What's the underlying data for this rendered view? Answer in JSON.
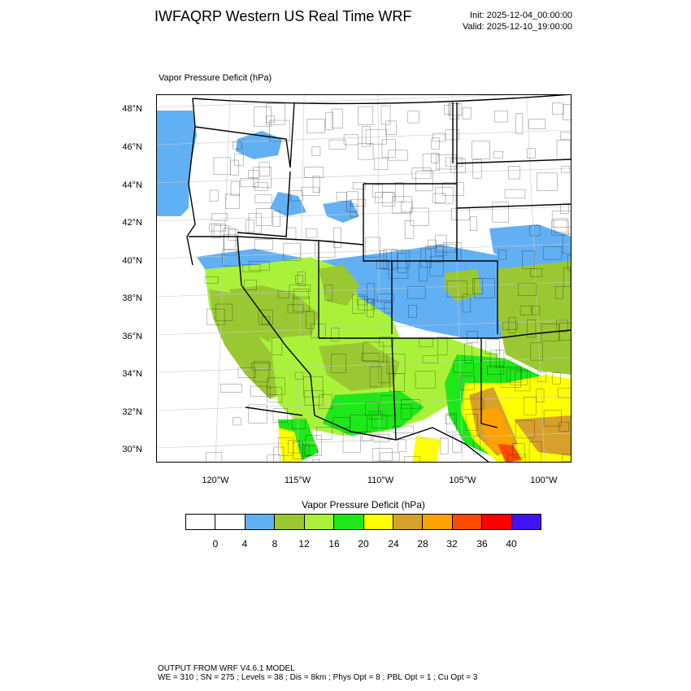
{
  "header": {
    "title": "IWFAQRP Western US Real Time WRF",
    "init": "Init: 2025-12-04_00:00:00",
    "valid": "Valid: 2025-12-10_19:00:00"
  },
  "map": {
    "field_label": "Vapor Pressure Deficit   (hPa)",
    "lat_labels": [
      "48°N",
      "46°N",
      "44°N",
      "42°N",
      "40°N",
      "38°N",
      "36°N",
      "34°N",
      "32°N",
      "30°N"
    ],
    "lon_labels": [
      "120°W",
      "115°W",
      "110°W",
      "105°W",
      "100°W"
    ],
    "colors": {
      "water": "#62b0f4",
      "blue": "#62b0f4",
      "olive": "#9ac832",
      "lime": "#aaf23a",
      "green": "#1fe81a",
      "yellow": "#ffff00",
      "gold": "#d6a02c",
      "orange": "#ffa200",
      "red_orange": "#ff4a00",
      "red": "#ff0000"
    }
  },
  "colorbar": {
    "title": "Vapor Pressure Deficit  (hPa)",
    "colors": [
      "#ffffff",
      "#ffffff",
      "#62b0f4",
      "#9ac832",
      "#aaf23a",
      "#1fe81a",
      "#ffff00",
      "#d6a02c",
      "#ffa200",
      "#ff4a00",
      "#ff0000",
      "#4012f4"
    ],
    "labels": [
      "0",
      "4",
      "8",
      "12",
      "16",
      "20",
      "24",
      "28",
      "32",
      "36",
      "40"
    ]
  },
  "footer": {
    "line1": "OUTPUT FROM WRF V4.6.1 MODEL",
    "line2": "WE = 310 ; SN = 275 ; Levels = 38 ; Dis = 8km ; Phys Opt = 8 ; PBL Opt = 1 ; Cu Opt = 3"
  }
}
